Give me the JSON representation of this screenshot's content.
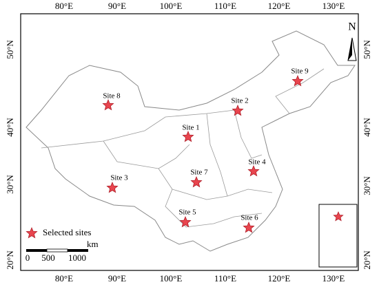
{
  "map": {
    "lon_labels": [
      "80°E",
      "90°E",
      "100°E",
      "110°E",
      "120°E",
      "130°E"
    ],
    "lat_labels": [
      "50°N",
      "40°N",
      "30°N",
      "20°N"
    ],
    "sites": [
      "Site 1",
      "Site 2",
      "Site 3",
      "Site 4",
      "Site 5",
      "Site 6",
      "Site 7",
      "Site 8",
      "Site 9"
    ],
    "legend": "Selected sites",
    "scale": {
      "ticks": [
        "0",
        "500",
        "1000"
      ],
      "unit": "km"
    },
    "north": "N"
  }
}
